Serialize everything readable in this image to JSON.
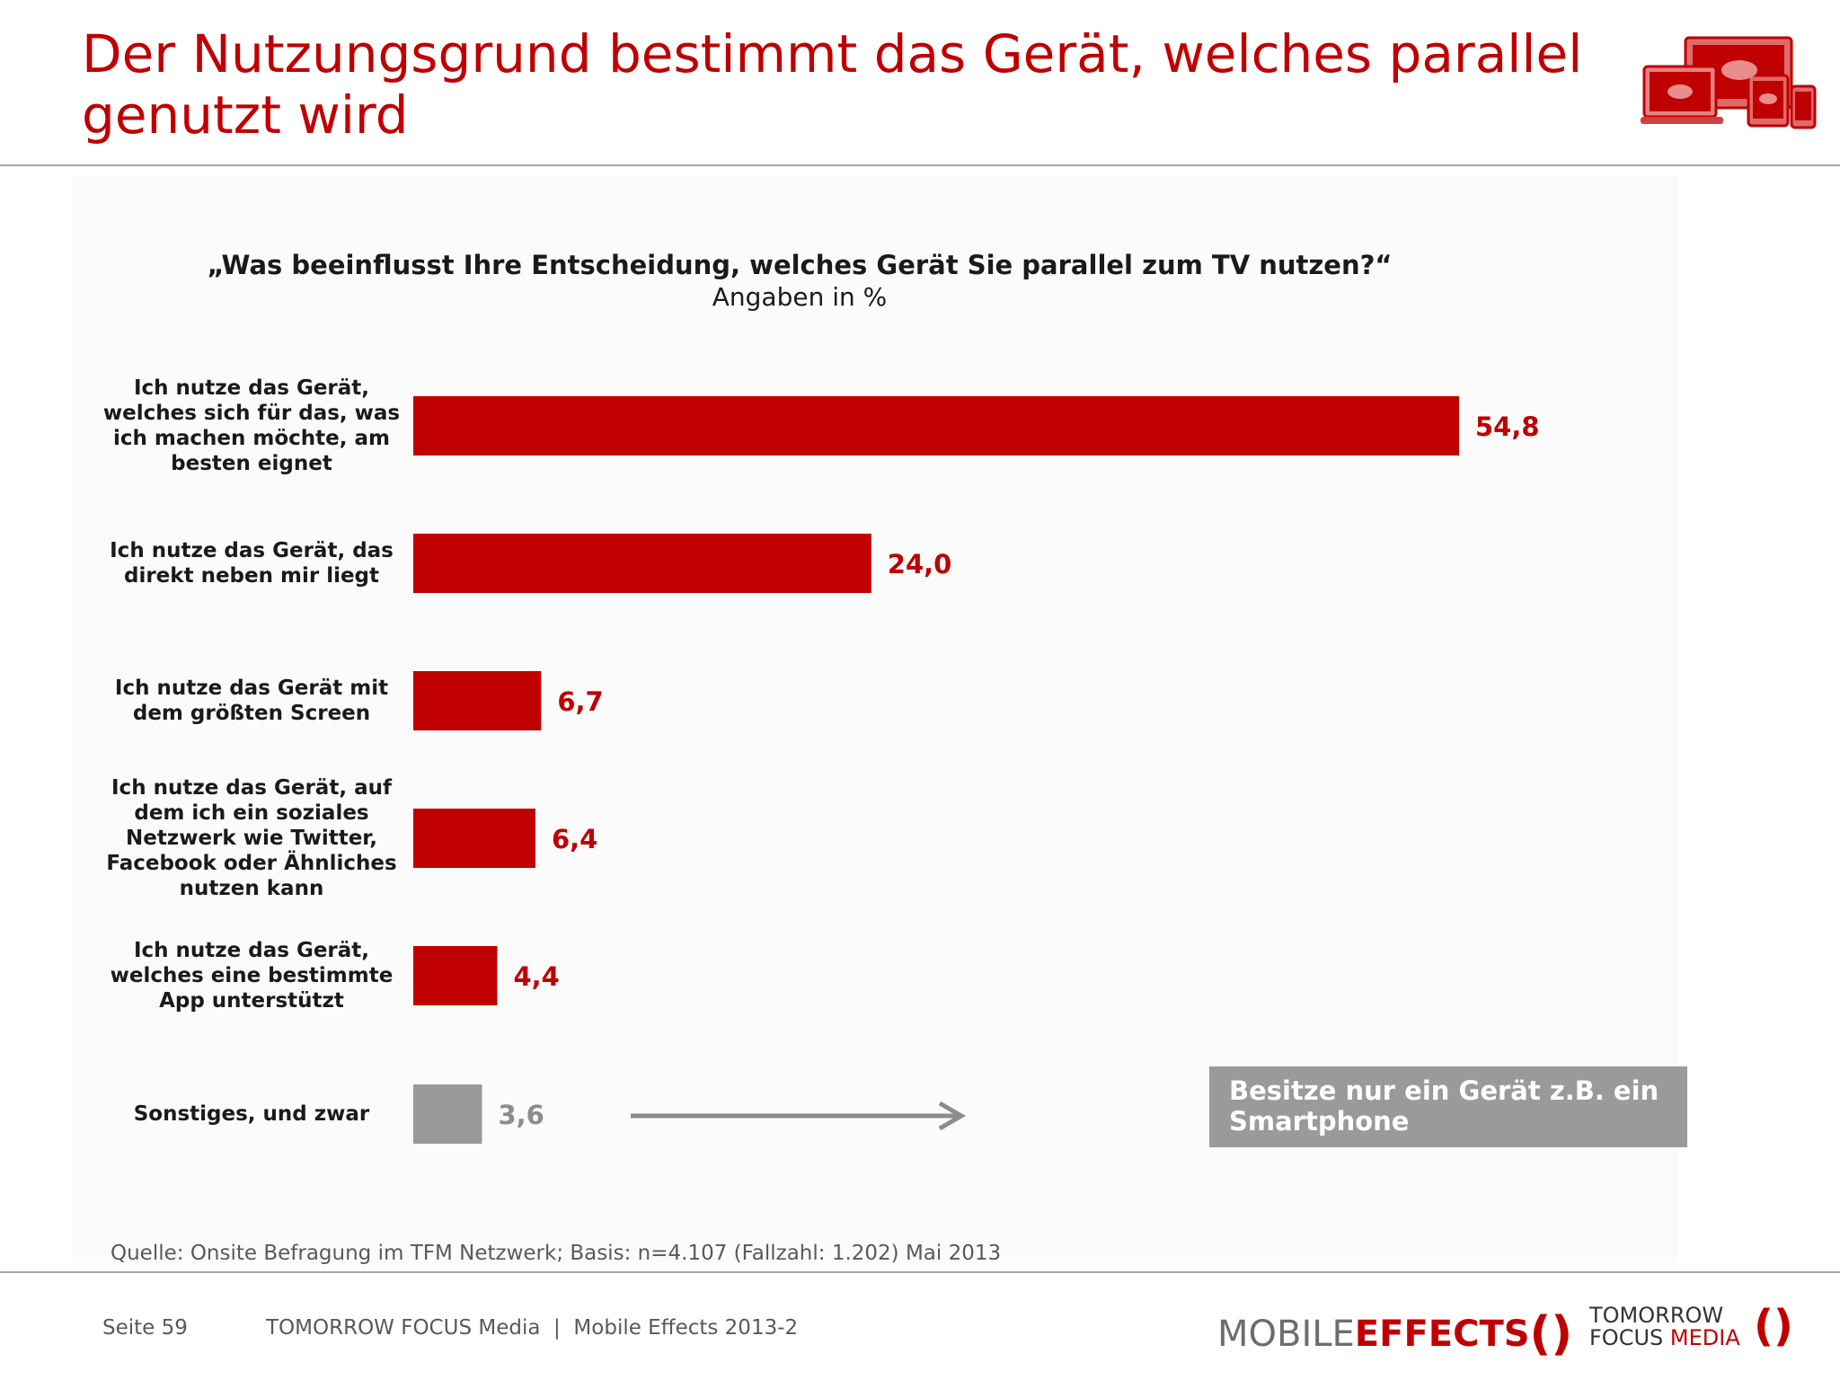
{
  "title": "Der Nutzungsgrund bestimmt das Gerät, welches parallel genutzt wird",
  "chart_data": {
    "type": "bar",
    "orientation": "horizontal",
    "title": "„Was beeinflusst Ihre Entscheidung, welches Gerät Sie parallel zum TV nutzen?“",
    "subtitle": "Angaben in %",
    "categories": [
      "Ich nutze das Gerät, welches sich für das, was ich machen möchte, am besten eignet",
      "Ich nutze das Gerät, das direkt neben mir liegt",
      "Ich nutze das Gerät mit dem größten Screen",
      "Ich nutze das Gerät, auf dem ich ein soziales Netzwerk wie Twitter, Facebook oder Ähnliches nutzen kann",
      "Ich nutze das Gerät, welches eine bestimmte App unterstützt",
      "Sonstiges, und zwar"
    ],
    "values": [
      54.8,
      24.0,
      6.7,
      6.4,
      4.4,
      3.6
    ],
    "value_labels": [
      "54,8",
      "24,0",
      "6,7",
      "6,4",
      "4,4",
      "3,6"
    ],
    "bar_colors": [
      "#c00000",
      "#c00000",
      "#c00000",
      "#c00000",
      "#c00000",
      "#999999"
    ],
    "label_colors": [
      "#c00000",
      "#c00000",
      "#c00000",
      "#c00000",
      "#c00000",
      "#8c8c8c"
    ],
    "xlim": [
      0,
      60
    ],
    "grid": false,
    "legend": "none"
  },
  "callout": "Besitze nur ein Gerät z.B. ein Smartphone",
  "source": "Quelle: Onsite Befragung im TFM Netzwerk; Basis: n=4.107 (Fallzahl: 1.202) Mai 2013",
  "footer": {
    "page": "Seite 59",
    "text": "TOMORROW FOCUS Media  |  Mobile Effects 2013-2"
  },
  "logos": {
    "mobile_effects": {
      "part1": "MOBILE",
      "part2": "EFFECTS",
      "bracket": "()"
    },
    "tomorrow_focus": {
      "line1": "TOMORROW",
      "line2a": "FOCUS ",
      "line2b": "MEDIA",
      "bracket": "()"
    }
  },
  "colors": {
    "accent": "#c00000",
    "gray": "#999999"
  },
  "icons": [
    "devices-logo-icon",
    "arrow-right-icon"
  ]
}
